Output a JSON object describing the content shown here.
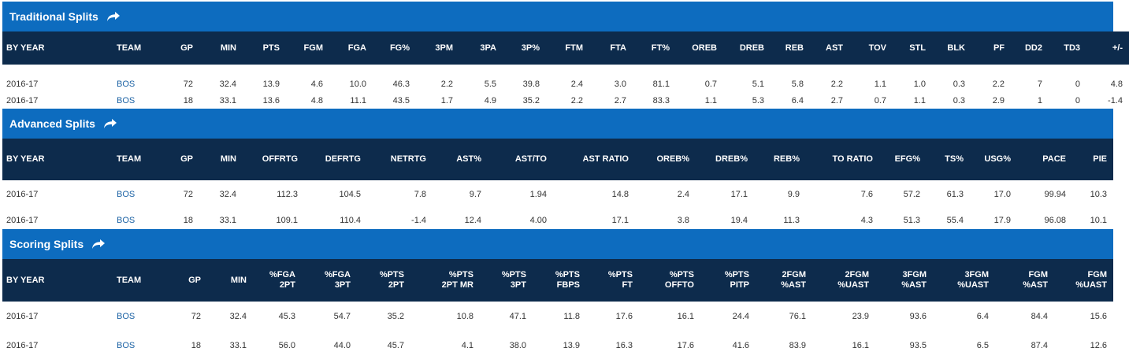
{
  "traditional": {
    "title": "Traditional Splits",
    "headers": [
      "BY YEAR",
      "TEAM",
      "GP",
      "MIN",
      "PTS",
      "FGM",
      "FGA",
      "FG%",
      "3PM",
      "3PA",
      "3P%",
      "FTM",
      "FTA",
      "FT%",
      "OREB",
      "DREB",
      "REB",
      "AST",
      "TOV",
      "STL",
      "BLK",
      "PF",
      "DD2",
      "TD3",
      "+/-"
    ],
    "rows": [
      [
        "2016-17",
        "BOS",
        "72",
        "32.4",
        "13.9",
        "4.6",
        "10.0",
        "46.3",
        "2.2",
        "5.5",
        "39.8",
        "2.4",
        "3.0",
        "81.1",
        "0.7",
        "5.1",
        "5.8",
        "2.2",
        "1.1",
        "1.0",
        "0.3",
        "2.2",
        "7",
        "0",
        "4.8"
      ],
      [
        "2016-17",
        "BOS",
        "18",
        "33.1",
        "13.6",
        "4.8",
        "11.1",
        "43.5",
        "1.7",
        "4.9",
        "35.2",
        "2.2",
        "2.7",
        "83.3",
        "1.1",
        "5.3",
        "6.4",
        "2.7",
        "0.7",
        "1.1",
        "0.3",
        "2.9",
        "1",
        "0",
        "-1.4"
      ]
    ]
  },
  "advanced": {
    "title": "Advanced Splits",
    "headers": [
      "BY YEAR",
      "TEAM",
      "GP",
      "MIN",
      "OFFRTG",
      "DEFRTG",
      "NETRTG",
      "AST%",
      "AST/TO",
      "AST RATIO",
      "OREB%",
      "DREB%",
      "REB%",
      "TO RATIO",
      "EFG%",
      "TS%",
      "USG%",
      "PACE",
      "PIE"
    ],
    "rows": [
      [
        "2016-17",
        "BOS",
        "72",
        "32.4",
        "112.3",
        "104.5",
        "7.8",
        "9.7",
        "1.94",
        "14.8",
        "2.4",
        "17.1",
        "9.9",
        "7.6",
        "57.2",
        "61.3",
        "17.0",
        "99.94",
        "10.3"
      ],
      [
        "2016-17",
        "BOS",
        "18",
        "33.1",
        "109.1",
        "110.4",
        "-1.4",
        "12.4",
        "4.00",
        "17.1",
        "3.8",
        "19.4",
        "11.3",
        "4.3",
        "51.3",
        "55.4",
        "17.9",
        "96.08",
        "10.1"
      ]
    ]
  },
  "scoring": {
    "title": "Scoring Splits",
    "headers": [
      [
        "BY YEAR",
        ""
      ],
      [
        "TEAM",
        ""
      ],
      [
        "GP",
        ""
      ],
      [
        "MIN",
        ""
      ],
      [
        "%FGA",
        "2PT"
      ],
      [
        "%FGA",
        "3PT"
      ],
      [
        "%PTS",
        "2PT"
      ],
      [
        "%PTS",
        "2PT MR"
      ],
      [
        "%PTS",
        "3PT"
      ],
      [
        "%PTS",
        "FBPS"
      ],
      [
        "%PTS",
        "FT"
      ],
      [
        "%PTS",
        "OFFTO"
      ],
      [
        "%PTS",
        "PITP"
      ],
      [
        "2FGM",
        "%AST"
      ],
      [
        "2FGM",
        "%UAST"
      ],
      [
        "3FGM",
        "%AST"
      ],
      [
        "3FGM",
        "%UAST"
      ],
      [
        "FGM",
        "%AST"
      ],
      [
        "FGM",
        "%UAST"
      ]
    ],
    "rows": [
      [
        "2016-17",
        "BOS",
        "72",
        "32.4",
        "45.3",
        "54.7",
        "35.2",
        "10.8",
        "47.1",
        "11.8",
        "17.6",
        "16.1",
        "24.4",
        "76.1",
        "23.9",
        "93.6",
        "6.4",
        "84.4",
        "15.6"
      ],
      [
        "2016-17",
        "BOS",
        "18",
        "33.1",
        "56.0",
        "44.0",
        "45.7",
        "4.1",
        "38.0",
        "13.9",
        "16.3",
        "17.6",
        "41.6",
        "83.9",
        "16.1",
        "93.5",
        "6.5",
        "87.4",
        "12.6"
      ]
    ]
  },
  "icons": {
    "share": "share-arrow-icon"
  },
  "colors": {
    "header_blue": "#0d6cbf",
    "header_navy": "#0d2b4c",
    "team_link": "#1d63a5"
  }
}
